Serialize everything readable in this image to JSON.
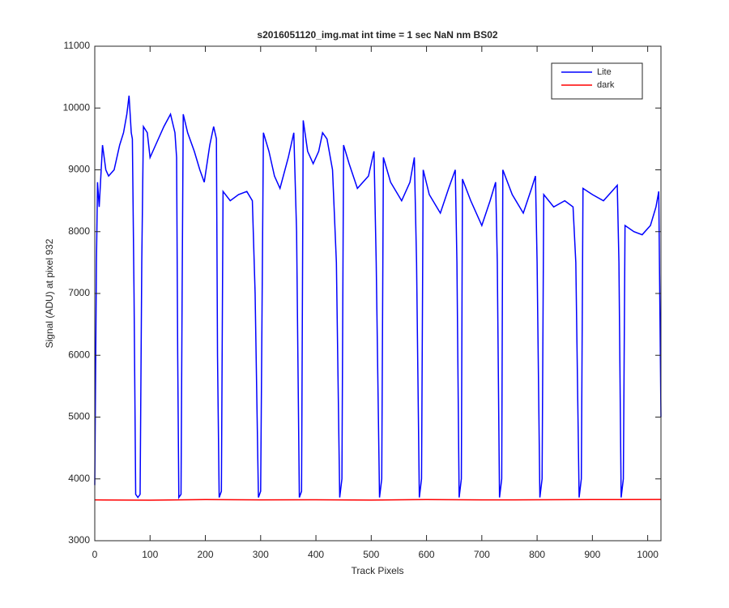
{
  "chart_data": {
    "type": "line",
    "title": "s2016051120_img.mat int time = 1 sec  NaN nm BS02",
    "x_label": "Track Pixels",
    "y_label": "Signal (ADU) at pixel 932",
    "xlim": [
      0,
      1024
    ],
    "ylim": [
      3000,
      11000
    ],
    "xticks": [
      0,
      100,
      200,
      300,
      400,
      500,
      600,
      700,
      800,
      900,
      1000
    ],
    "yticks": [
      3000,
      4000,
      5000,
      6000,
      7000,
      8000,
      9000,
      10000,
      11000
    ],
    "legend": "upper right",
    "series": [
      {
        "name": "Lite",
        "color": "#0000ff",
        "x": [
          0,
          3,
          5,
          8,
          14,
          20,
          25,
          35,
          45,
          52,
          58,
          62,
          66,
          68,
          71,
          74,
          78,
          82,
          85,
          88,
          95,
          100,
          110,
          125,
          137,
          145,
          148,
          150,
          152,
          156,
          158,
          160,
          168,
          180,
          190,
          198,
          208,
          215,
          220,
          222,
          225,
          229,
          232,
          245,
          260,
          275,
          285,
          290,
          296,
          300,
          305,
          315,
          325,
          335,
          350,
          360,
          365,
          370,
          374,
          377,
          385,
          395,
          405,
          412,
          420,
          430,
          437,
          443,
          447,
          450,
          460,
          475,
          495,
          505,
          509,
          515,
          519,
          522,
          535,
          555,
          570,
          578,
          582,
          587,
          591,
          594,
          605,
          625,
          640,
          652,
          655,
          659,
          663,
          665,
          680,
          700,
          715,
          725,
          728,
          732,
          736,
          738,
          755,
          775,
          790,
          797,
          800,
          805,
          809,
          812,
          830,
          850,
          865,
          870,
          876,
          880,
          883,
          900,
          920,
          935,
          945,
          948,
          952,
          956,
          959,
          975,
          990,
          1005,
          1015,
          1020,
          1024
        ],
        "values": [
          3900,
          7500,
          8800,
          8400,
          9400,
          9000,
          8900,
          9000,
          9400,
          9600,
          9900,
          10200,
          9600,
          9500,
          7000,
          3750,
          3700,
          3750,
          7500,
          9700,
          9600,
          9200,
          9400,
          9700,
          9900,
          9600,
          9200,
          6000,
          3700,
          3750,
          7000,
          9900,
          9600,
          9300,
          9000,
          8800,
          9400,
          9700,
          9500,
          6000,
          3700,
          3800,
          8650,
          8500,
          8600,
          8650,
          8500,
          7000,
          3700,
          3800,
          9600,
          9300,
          8900,
          8700,
          9200,
          9600,
          8000,
          3700,
          3800,
          9800,
          9300,
          9100,
          9300,
          9600,
          9500,
          9000,
          7500,
          3700,
          4000,
          9400,
          9100,
          8700,
          8900,
          9300,
          7500,
          3700,
          4000,
          9200,
          8800,
          8500,
          8800,
          9200,
          7500,
          3700,
          4000,
          9000,
          8600,
          8300,
          8700,
          9000,
          7500,
          3700,
          4000,
          8850,
          8500,
          8100,
          8500,
          8800,
          7500,
          3700,
          4000,
          9000,
          8600,
          8300,
          8700,
          8900,
          7500,
          3700,
          4000,
          8600,
          8400,
          8500,
          8400,
          7500,
          3700,
          4000,
          8700,
          8600,
          8500,
          8650,
          8750,
          7500,
          3700,
          4000,
          8100,
          8000,
          7950,
          8100,
          8400,
          8650,
          5000
        ]
      },
      {
        "name": "dark",
        "color": "#ff0000",
        "x": [
          0,
          100,
          200,
          300,
          400,
          500,
          600,
          700,
          800,
          900,
          1024
        ],
        "values": [
          3660,
          3655,
          3665,
          3660,
          3662,
          3658,
          3665,
          3660,
          3662,
          3665,
          3668
        ]
      }
    ]
  }
}
